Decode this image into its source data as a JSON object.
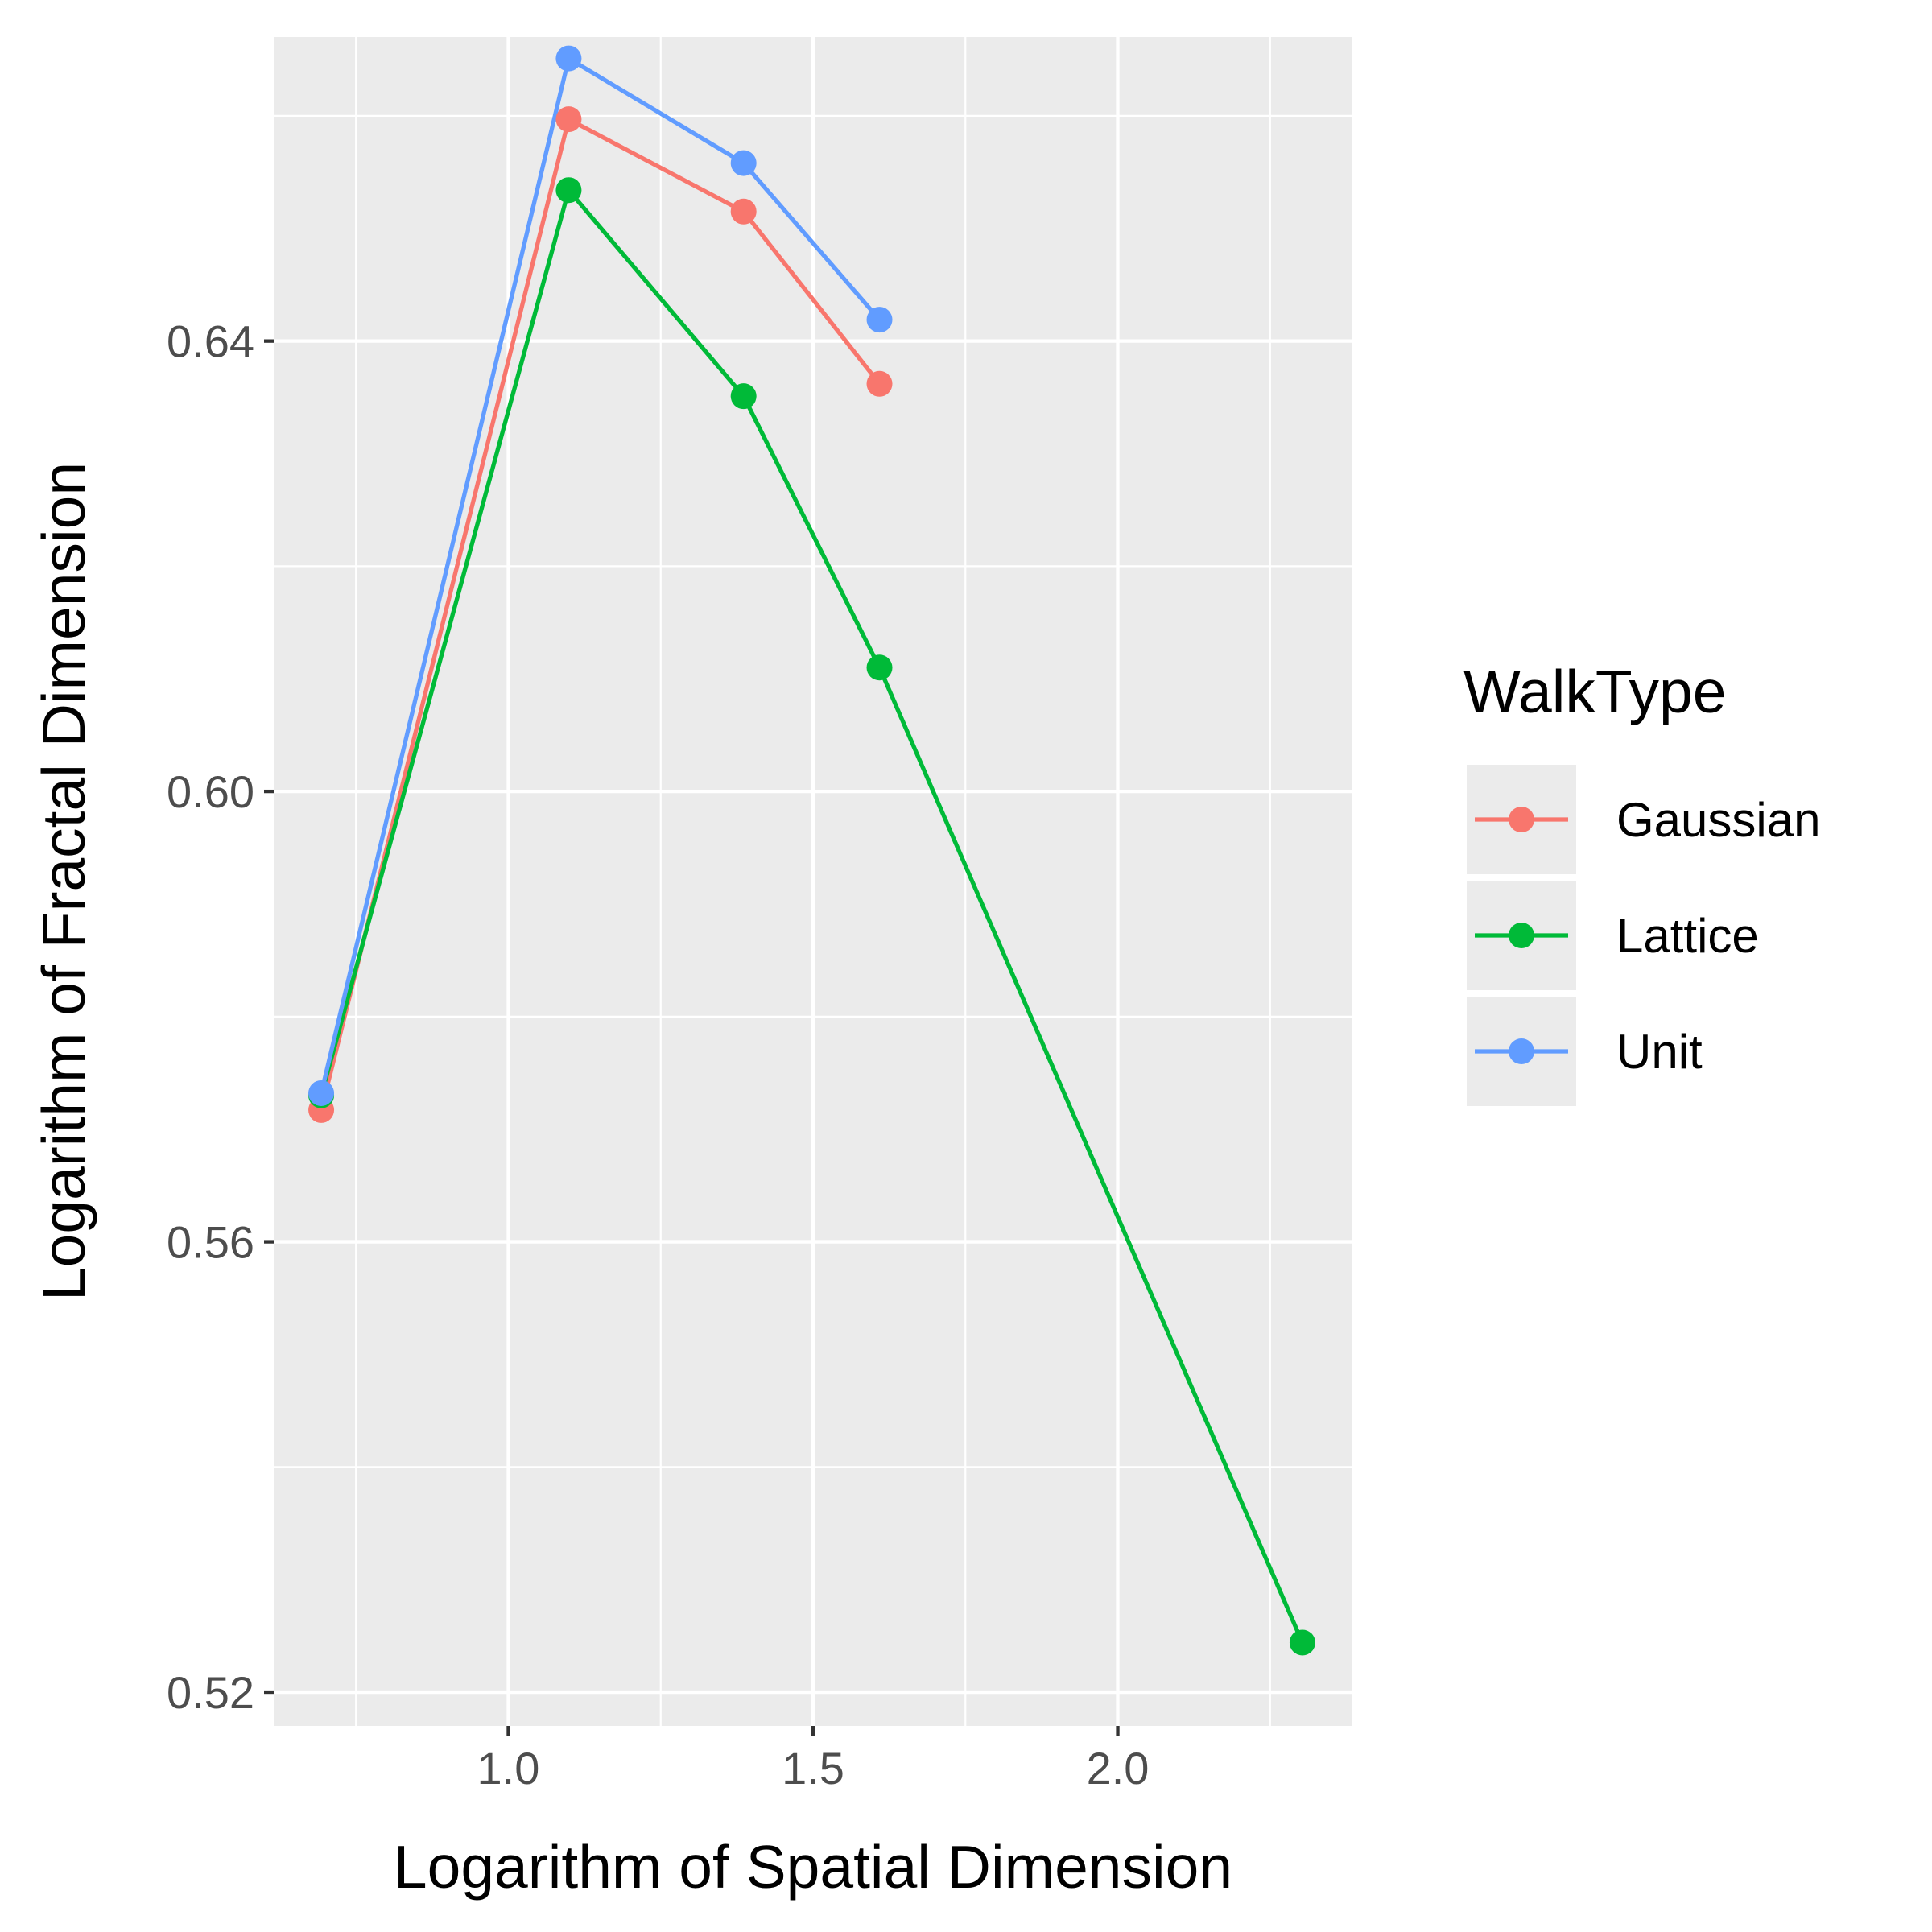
{
  "chart_data": {
    "type": "line",
    "xlabel": "Logarithm of Spatial Dimension",
    "ylabel": "Logarithm of Fractal Dimension",
    "xlim": [
      0.615,
      2.385
    ],
    "ylim": [
      0.517,
      0.667
    ],
    "x_ticks": [
      1.0,
      1.5,
      2.0
    ],
    "x_tick_labels": [
      "1.0",
      "1.5",
      "2.0"
    ],
    "x_minor_ticks": [
      0.75,
      1.25,
      1.75,
      2.25
    ],
    "y_ticks": [
      0.52,
      0.56,
      0.6,
      0.64
    ],
    "y_tick_labels": [
      "0.52",
      "0.56",
      "0.60",
      "0.64"
    ],
    "y_minor_ticks": [
      0.54,
      0.58,
      0.62,
      0.66
    ],
    "grid": true,
    "legend": {
      "title": "WalkType",
      "placement": "right"
    },
    "series": [
      {
        "name": "Gaussian",
        "color": "#F8766D",
        "x": [
          0.693,
          1.099,
          1.386,
          1.609
        ],
        "y": [
          0.5717,
          0.6597,
          0.6515,
          0.6362
        ]
      },
      {
        "name": "Lattice",
        "color": "#00BA38",
        "x": [
          0.693,
          1.099,
          1.386,
          1.609,
          2.303
        ],
        "y": [
          0.573,
          0.6534,
          0.6351,
          0.611,
          0.5244
        ]
      },
      {
        "name": "Unit",
        "color": "#619CFF",
        "x": [
          0.693,
          1.099,
          1.386,
          1.609
        ],
        "y": [
          0.5732,
          0.6651,
          0.6558,
          0.6419
        ]
      }
    ]
  }
}
